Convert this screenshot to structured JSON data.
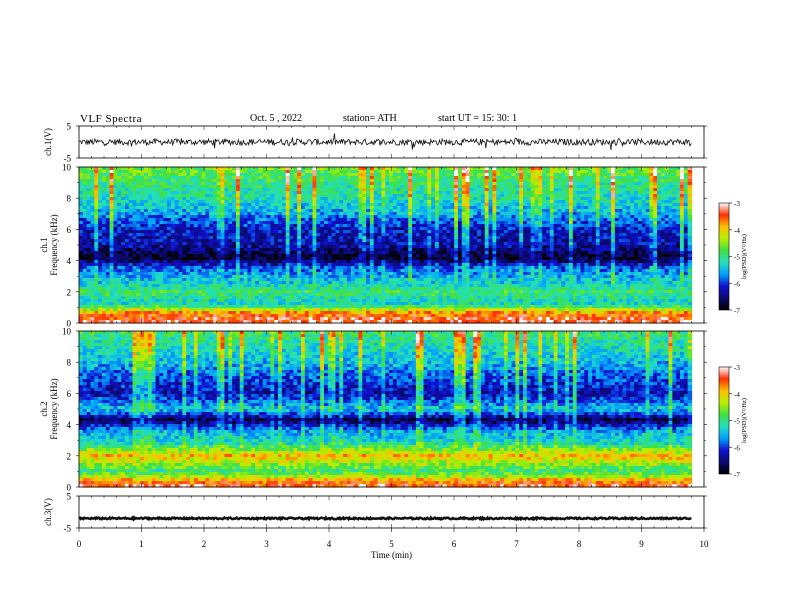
{
  "header": {
    "title": "VLF  Spectra",
    "date": "Oct. 5  , 2022",
    "station": "station= ATH",
    "start_ut": "start  UT  =    15: 30: 1"
  },
  "colors": {
    "waveform": "#111111",
    "colormap": [
      "#000000",
      "#0a0a6e",
      "#1010d0",
      "#00a0ff",
      "#22e0c0",
      "#40e040",
      "#b8f000",
      "#ffc000",
      "#ff3000",
      "#ffffff"
    ]
  },
  "chart_data": [
    {
      "id": "ch1-waveform",
      "type": "line",
      "ylabel": "ch.1(V)",
      "ylim": [
        -5,
        5
      ],
      "y_ticks": [
        "5",
        "-5"
      ],
      "xlim": [
        0,
        10
      ],
      "baseline_value": 0,
      "noise_amplitude_approx": 1,
      "data_end_min": 9.8
    },
    {
      "id": "ch1-spectrogram",
      "type": "heatmap",
      "ylabel": "ch.1\nFrequency  (kHz)",
      "ylim": [
        0,
        10
      ],
      "y_ticks": [
        "0",
        "2",
        "4",
        "6",
        "8",
        "10"
      ],
      "xlim": [
        0,
        10
      ],
      "colorbar": {
        "label": "log(PSD)(V²/Hz)",
        "range": [
          -7,
          -3
        ],
        "ticks": [
          "-3",
          "-4",
          "-5",
          "-6",
          "-7"
        ]
      },
      "approx_log_psd_by_frequency_khz": [
        {
          "f": 0.2,
          "v": -3.3
        },
        {
          "f": 0.7,
          "v": -3.8
        },
        {
          "f": 1.2,
          "v": -5.3
        },
        {
          "f": 2.0,
          "v": -4.9
        },
        {
          "f": 2.6,
          "v": -5.4
        },
        {
          "f": 3.5,
          "v": -5.8
        },
        {
          "f": 4.2,
          "v": -6.9
        },
        {
          "f": 5.0,
          "v": -6.3
        },
        {
          "f": 6.0,
          "v": -6.2
        },
        {
          "f": 7.0,
          "v": -5.6
        },
        {
          "f": 8.0,
          "v": -5.2
        },
        {
          "f": 9.0,
          "v": -5.0
        },
        {
          "f": 10.0,
          "v": -4.6
        }
      ]
    },
    {
      "id": "ch2-spectrogram",
      "type": "heatmap",
      "ylabel": "ch.2\nFrequency  (kHz)",
      "ylim": [
        0,
        10
      ],
      "y_ticks": [
        "0",
        "2",
        "4",
        "6",
        "8",
        "10"
      ],
      "xlim": [
        0,
        10
      ],
      "colorbar": {
        "label": "log(PSD)(V²/Hz)",
        "range": [
          -7,
          -3
        ],
        "ticks": [
          "-3",
          "-4",
          "-5",
          "-6",
          "-7"
        ]
      },
      "approx_log_psd_by_frequency_khz": [
        {
          "f": 0.2,
          "v": -3.4
        },
        {
          "f": 1.0,
          "v": -5.0
        },
        {
          "f": 2.0,
          "v": -3.9
        },
        {
          "f": 2.8,
          "v": -5.2
        },
        {
          "f": 3.6,
          "v": -5.6
        },
        {
          "f": 4.3,
          "v": -6.7
        },
        {
          "f": 5.0,
          "v": -5.4
        },
        {
          "f": 6.0,
          "v": -6.3
        },
        {
          "f": 7.0,
          "v": -5.9
        },
        {
          "f": 8.0,
          "v": -5.5
        },
        {
          "f": 9.0,
          "v": -5.2
        },
        {
          "f": 10.0,
          "v": -4.9
        }
      ]
    },
    {
      "id": "ch3-waveform",
      "type": "line",
      "ylabel": "ch.3(V)",
      "ylim": [
        -5,
        5
      ],
      "y_ticks": [
        "5",
        "-5"
      ],
      "xlim": [
        0,
        10
      ],
      "baseline_value": -2,
      "noise_amplitude_approx": 0.25,
      "data_end_min": 9.8
    }
  ],
  "x_axis": {
    "label": "Time  (min)",
    "ticks": [
      "0",
      "1",
      "2",
      "3",
      "4",
      "5",
      "6",
      "7",
      "8",
      "9",
      "10"
    ]
  }
}
